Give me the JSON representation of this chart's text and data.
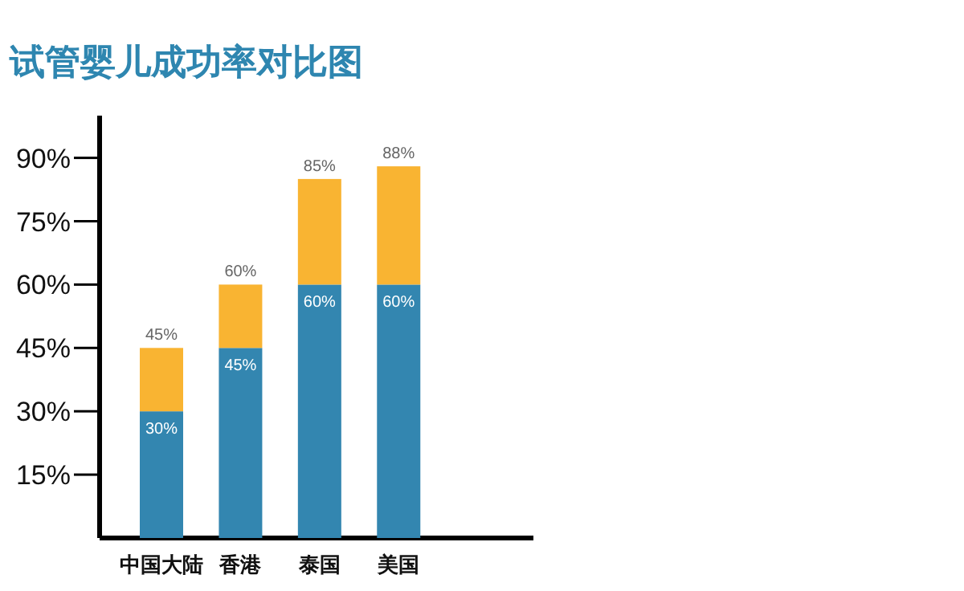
{
  "chart_data": {
    "type": "bar",
    "title": "试管婴儿成功率对比图",
    "categories": [
      "中国大陆",
      "香港",
      "泰国",
      "美国"
    ],
    "stacked": true,
    "series": [
      {
        "color": "#3386b0",
        "values": [
          30,
          45,
          60,
          60
        ],
        "value_labels": [
          "30%",
          "45%",
          "60%",
          "60%"
        ]
      },
      {
        "color": "#f9b432",
        "values": [
          15,
          15,
          25,
          28
        ]
      }
    ],
    "totals": [
      "45%",
      "60%",
      "85%",
      "88%"
    ],
    "ylim": [
      0,
      100
    ],
    "yticks": [
      {
        "value": 15,
        "label": "15%"
      },
      {
        "value": 30,
        "label": "30%"
      },
      {
        "value": 45,
        "label": "45%"
      },
      {
        "value": 60,
        "label": "60%"
      },
      {
        "value": 75,
        "label": "75%"
      },
      {
        "value": 90,
        "label": "90%"
      }
    ]
  }
}
